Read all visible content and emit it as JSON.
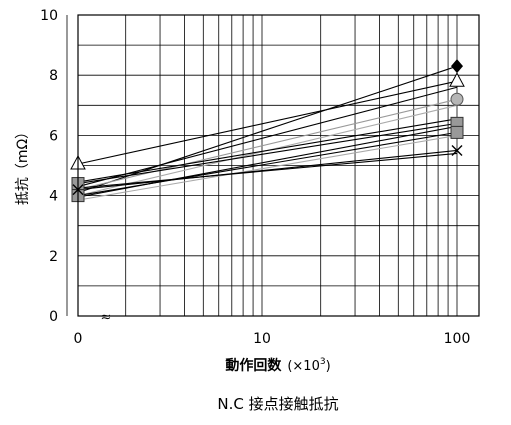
{
  "chart_data": {
    "type": "line",
    "title": "N.C 接点接触抵抗",
    "xlabel": "動作回数",
    "xlabel_unit": "(×10",
    "xlabel_unit_exp": "3",
    "xlabel_unit_close": ")",
    "ylabel": "抵抗（mΩ）",
    "x_axis_scale": "log (with broken axis near 0)",
    "x_tick_labels": [
      "0",
      "10",
      "100"
    ],
    "x_break_mark": "≈",
    "y_tick_labels": [
      "0",
      "2",
      "4",
      "6",
      "8",
      "10"
    ],
    "ylim": [
      0,
      10
    ],
    "grid": true,
    "x": [
      0,
      100
    ],
    "series": [
      {
        "marker": "diamond-filled",
        "color": "#000000",
        "values": [
          4.1,
          8.3
        ]
      },
      {
        "marker": "triangle-open",
        "color": "#000000",
        "values": [
          5.05,
          7.8
        ]
      },
      {
        "marker": "line",
        "color": "#000000",
        "values": [
          4.3,
          7.6
        ]
      },
      {
        "marker": "circle-gray",
        "color": "#999999",
        "values": [
          4.2,
          7.2
        ]
      },
      {
        "marker": "line",
        "color": "#aaaaaa",
        "values": [
          4.0,
          7.0
        ]
      },
      {
        "marker": "line",
        "color": "#000000",
        "values": [
          4.45,
          6.55
        ]
      },
      {
        "marker": "square-gray",
        "color": "#000000",
        "values": [
          4.4,
          6.4
        ]
      },
      {
        "marker": "line",
        "color": "#000000",
        "values": [
          3.95,
          6.3
        ]
      },
      {
        "marker": "square-gray",
        "color": "#000000",
        "values": [
          4.0,
          6.1
        ]
      },
      {
        "marker": "line",
        "color": "#aaaaaa",
        "values": [
          3.85,
          6.0
        ]
      },
      {
        "marker": "cross-x",
        "color": "#000000",
        "values": [
          4.2,
          5.5
        ]
      },
      {
        "marker": "line",
        "color": "#000000",
        "values": [
          4.25,
          5.4
        ]
      }
    ]
  }
}
